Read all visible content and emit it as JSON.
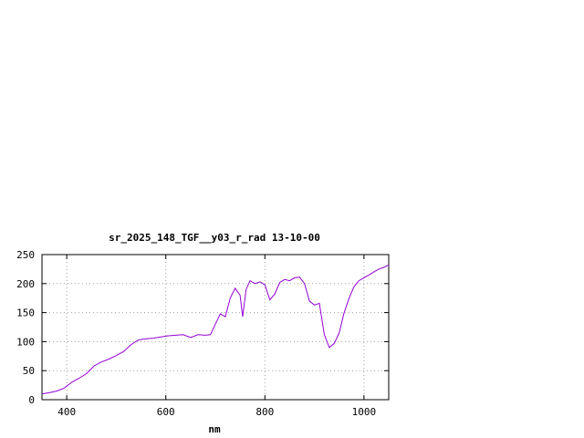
{
  "chart_data": {
    "type": "line",
    "title": "sr_2025_148_TGF__y03_r_rad 13-10-00",
    "xlabel": "nm",
    "ylabel": "",
    "xlim": [
      350,
      1050
    ],
    "ylim": [
      0,
      250
    ],
    "xticks": [
      400,
      600,
      800,
      1000
    ],
    "yticks": [
      0,
      50,
      100,
      150,
      200,
      250
    ],
    "grid": true,
    "line_color": "#9400d3",
    "series": [
      {
        "x": [
          350,
          365,
          380,
          395,
          410,
          425,
          440,
          455,
          470,
          485,
          500,
          515,
          530,
          545,
          560,
          575,
          590,
          605,
          620,
          635,
          650,
          665,
          680,
          690,
          700,
          710,
          720,
          730,
          740,
          750,
          755,
          762,
          770,
          780,
          790,
          800,
          810,
          820,
          830,
          840,
          850,
          860,
          870,
          880,
          890,
          900,
          910,
          920,
          930,
          940,
          950,
          960,
          970,
          980,
          990,
          1000,
          1010,
          1020,
          1030,
          1040,
          1050
        ],
        "y": [
          10,
          12,
          15,
          20,
          30,
          37,
          45,
          58,
          65,
          70,
          76,
          83,
          95,
          103,
          105,
          106,
          108,
          110,
          111,
          112,
          107,
          112,
          111,
          112,
          130,
          148,
          143,
          175,
          192,
          180,
          143,
          190,
          205,
          200,
          203,
          198,
          172,
          182,
          202,
          207,
          205,
          210,
          211,
          200,
          170,
          163,
          166,
          112,
          90,
          97,
          115,
          150,
          175,
          195,
          205,
          210,
          215,
          220,
          225,
          228,
          232
        ]
      }
    ]
  }
}
